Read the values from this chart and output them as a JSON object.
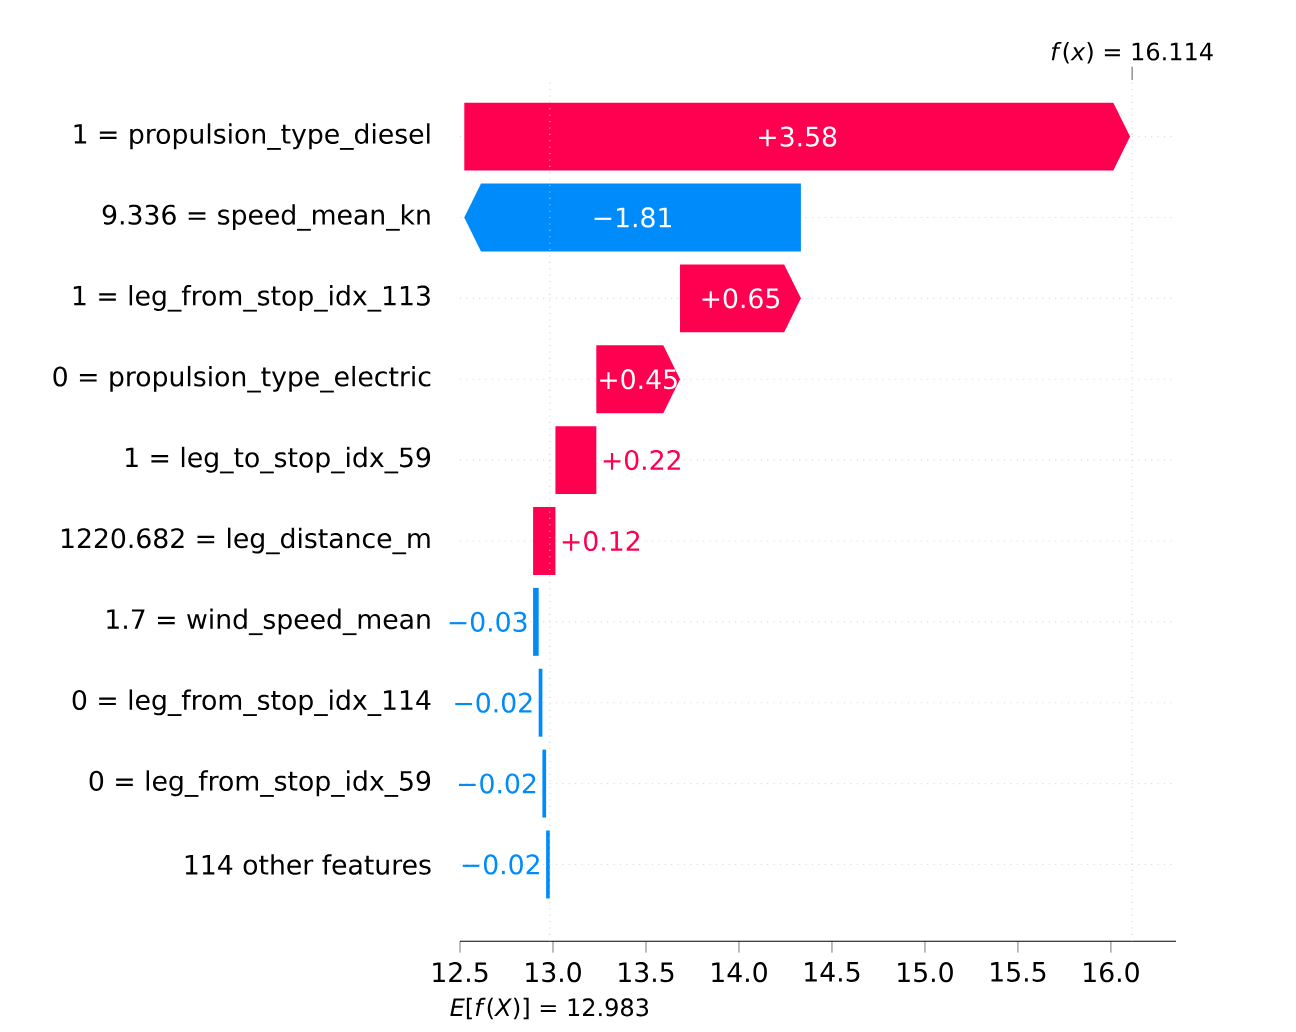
{
  "chart_data": {
    "type": "bar",
    "orientation": "horizontal",
    "categories": [
      "1 = propulsion_type_diesel",
      "9.336 = speed_mean_kn",
      "1 = leg_from_stop_idx_113",
      "0 = propulsion_type_electric",
      "1 = leg_to_stop_idx_59",
      "1220.682 = leg_distance_m",
      "1.7 = wind_speed_mean",
      "0 = leg_from_stop_idx_114",
      "0 = leg_from_stop_idx_59",
      "114 other features"
    ],
    "values": [
      3.58,
      -1.81,
      0.65,
      0.45,
      0.22,
      0.12,
      -0.03,
      -0.02,
      -0.02,
      -0.02
    ],
    "base": [
      12.523,
      14.333,
      13.683,
      13.233,
      13.013,
      12.893,
      12.923,
      12.943,
      12.963,
      12.983
    ],
    "value_labels": [
      "+3.58",
      "−1.81",
      "+0.65",
      "+0.45",
      "+0.22",
      "+0.12",
      "−0.03",
      "−0.02",
      "−0.02",
      "−0.02"
    ],
    "colors": [
      "#ff0051",
      "#008bfb",
      "#ff0051",
      "#ff0051",
      "#ff0051",
      "#ff0051",
      "#008bfb",
      "#008bfb",
      "#008bfb",
      "#008bfb"
    ],
    "xlim": [
      12.5,
      16.35
    ],
    "xticks": [
      {
        "value": 12.5,
        "label": "12.5"
      },
      {
        "value": 13.0,
        "label": "13.0"
      },
      {
        "value": 13.5,
        "label": "13.5"
      },
      {
        "value": 14.0,
        "label": "14.0"
      },
      {
        "value": 14.5,
        "label": "14.5"
      },
      {
        "value": 15.0,
        "label": "15.0"
      },
      {
        "value": 15.5,
        "label": "15.5"
      },
      {
        "value": 16.0,
        "label": "16.0"
      }
    ],
    "grid": "y",
    "ref_lines": [
      {
        "axis": "x",
        "value": 16.114,
        "label": "*f*(*x*) = 16.114",
        "color": "#cccccc",
        "line_style": "dotted"
      },
      {
        "axis": "x",
        "value": 12.983,
        "label": "*E*[*f*(*X*)] = 12.983",
        "color": "#cccccc",
        "line_style": "dotted"
      }
    ]
  }
}
